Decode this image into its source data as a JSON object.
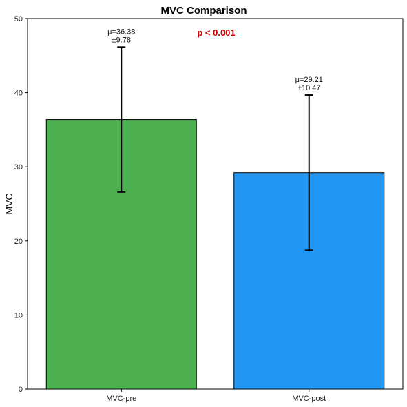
{
  "chart_data": {
    "type": "bar",
    "title": "MVC Comparison",
    "xlabel": "",
    "ylabel": "MVC",
    "ylim": [
      0,
      50
    ],
    "yticks": [
      0,
      10,
      20,
      30,
      40,
      50
    ],
    "grid": false,
    "categories": [
      "MVC-pre",
      "MVC-post"
    ],
    "values": [
      36.38,
      29.21
    ],
    "errors": [
      9.78,
      10.47
    ],
    "bar_colors": [
      "#4caf50",
      "#2196f3"
    ],
    "annotations": [
      {
        "mean": "μ=36.38",
        "sd": "±9.78"
      },
      {
        "mean": "μ=29.21",
        "sd": "±10.47"
      }
    ],
    "significance": {
      "text": "p < 0.001",
      "color": "#cc0000"
    }
  }
}
